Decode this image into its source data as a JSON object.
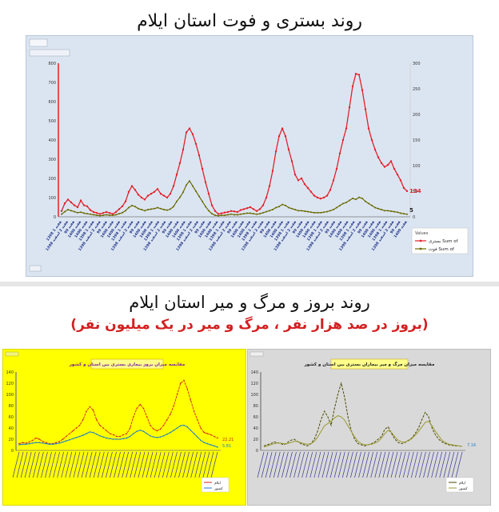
{
  "top": {
    "title": "روند بستری و فوت استان ایلام",
    "legend": {
      "header": "Values",
      "items": [
        {
          "label": "بستری Sum of",
          "color": "#e3212b"
        },
        {
          "label": "فوت Sum of",
          "color": "#6a6a00"
        }
      ]
    },
    "end_labels": {
      "hosp": "134",
      "death": "5"
    },
    "chart_data": {
      "type": "line",
      "ylim": [
        0,
        800
      ],
      "yticks": [
        0,
        100,
        200,
        300,
        400,
        500,
        600,
        700,
        800
      ],
      "y2lim": [
        0,
        300
      ],
      "y2ticks": [
        0,
        50,
        100,
        150,
        200,
        250,
        300
      ],
      "x_label_samples": [
        "1398 هفته 1",
        "هفته 2 اسفند 1398",
        "99 هفته",
        "1400 هفته",
        "1400 هفته"
      ],
      "series": [
        {
          "name": "بستری Sum of",
          "values": [
            30,
            70,
            90,
            75,
            60,
            50,
            85,
            60,
            55,
            35,
            25,
            20,
            15,
            20,
            25,
            20,
            15,
            25,
            40,
            55,
            80,
            130,
            160,
            140,
            115,
            100,
            90,
            110,
            120,
            130,
            145,
            120,
            110,
            100,
            120,
            160,
            220,
            280,
            350,
            440,
            460,
            430,
            380,
            320,
            250,
            180,
            120,
            60,
            30,
            15,
            18,
            22,
            25,
            30,
            28,
            25,
            35,
            40,
            45,
            50,
            40,
            30,
            40,
            60,
            100,
            160,
            240,
            340,
            420,
            460,
            420,
            350,
            290,
            220,
            190,
            200,
            170,
            150,
            130,
            110,
            100,
            95,
            100,
            110,
            140,
            190,
            250,
            330,
            400,
            460,
            570,
            680,
            745,
            740,
            660,
            560,
            460,
            400,
            350,
            310,
            280,
            260,
            270,
            290,
            250,
            220,
            190,
            150,
            134
          ]
        },
        {
          "name": "فوت Sum of",
          "values": [
            5,
            10,
            14,
            12,
            10,
            8,
            9,
            7,
            6,
            5,
            4,
            3,
            2,
            3,
            4,
            3,
            3,
            4,
            6,
            8,
            12,
            18,
            22,
            20,
            16,
            14,
            12,
            14,
            15,
            16,
            18,
            16,
            14,
            13,
            15,
            20,
            30,
            38,
            48,
            62,
            70,
            60,
            50,
            40,
            30,
            20,
            12,
            6,
            3,
            2,
            3,
            3,
            4,
            5,
            4,
            4,
            5,
            6,
            7,
            7,
            6,
            5,
            6,
            8,
            10,
            12,
            14,
            18,
            20,
            24,
            22,
            18,
            16,
            14,
            12,
            12,
            11,
            10,
            9,
            8,
            8,
            8,
            9,
            10,
            12,
            14,
            18,
            22,
            26,
            28,
            32,
            36,
            34,
            38,
            36,
            30,
            26,
            22,
            18,
            16,
            14,
            12,
            12,
            11,
            10,
            9,
            7,
            6,
            5
          ]
        }
      ]
    }
  },
  "bottom": {
    "title": "روند بروز و مرگ و میر استان ایلام",
    "subtitle": "(بروز در صد هزار نفر ، مرگ و میر در یک میلیون نفر)",
    "left_chart": {
      "title": "مقایسه میزان بروز بیماری بستری بین استان و کشور",
      "end_labels": [
        "22.21",
        "5.81"
      ],
      "legend": [
        {
          "label": "ایلام",
          "color": "#d42020"
        },
        {
          "label": "کشور",
          "color": "#1f7ec8"
        }
      ],
      "chart_data": {
        "type": "line",
        "ylim": [
          0,
          140
        ],
        "yticks": [
          0,
          20,
          40,
          60,
          80,
          100,
          120,
          140
        ],
        "series": [
          {
            "name": "ایلام",
            "values": [
              12,
              14,
              13,
              15,
              18,
              22,
              20,
              16,
              14,
              12,
              12,
              14,
              16,
              20,
              25,
              30,
              35,
              40,
              45,
              55,
              70,
              78,
              72,
              55,
              45,
              40,
              35,
              30,
              28,
              25,
              25,
              28,
              30,
              40,
              60,
              75,
              82,
              75,
              60,
              45,
              38,
              35,
              38,
              45,
              55,
              65,
              80,
              100,
              120,
              125,
              110,
              90,
              70,
              55,
              40,
              32,
              30,
              28,
              25,
              22.21
            ]
          },
          {
            "name": "کشور",
            "values": [
              10,
              11,
              11,
              12,
              13,
              14,
              14,
              13,
              12,
              11,
              11,
              12,
              13,
              15,
              17,
              19,
              21,
              23,
              25,
              27,
              30,
              33,
              32,
              29,
              26,
              24,
              22,
              21,
              20,
              20,
              20,
              21,
              22,
              25,
              30,
              34,
              36,
              34,
              30,
              26,
              24,
              23,
              24,
              26,
              29,
              32,
              36,
              40,
              44,
              45,
              42,
              36,
              30,
              24,
              18,
              14,
              12,
              10,
              8,
              5.81
            ]
          }
        ]
      }
    },
    "right_chart": {
      "title": "مقایسه میزان مرگ و میر بیماران بستری بین استان و کشور",
      "end_label": "7.16",
      "legend": [
        {
          "label": "ایلام",
          "color": "#4a4a00"
        },
        {
          "label": "کشور",
          "color": "#9a9a30"
        }
      ],
      "chart_data": {
        "type": "line",
        "ylim": [
          0,
          140
        ],
        "yticks": [
          0,
          20,
          40,
          60,
          80,
          100,
          120,
          140
        ],
        "series": [
          {
            "name": "ایلام",
            "values": [
              8,
              10,
              12,
              15,
              14,
              12,
              10,
              14,
              18,
              20,
              16,
              12,
              10,
              8,
              12,
              20,
              35,
              55,
              70,
              60,
              45,
              75,
              100,
              120,
              95,
              60,
              35,
              20,
              12,
              10,
              8,
              10,
              12,
              15,
              20,
              25,
              38,
              42,
              30,
              20,
              14,
              12,
              14,
              18,
              22,
              30,
              40,
              55,
              68,
              60,
              40,
              28,
              20,
              15,
              12,
              10,
              9,
              8,
              8,
              7.16
            ]
          },
          {
            "name": "کشور",
            "values": [
              6,
              8,
              10,
              12,
              13,
              13,
              12,
              12,
              14,
              16,
              16,
              14,
              12,
              11,
              12,
              16,
              24,
              34,
              44,
              48,
              52,
              58,
              62,
              60,
              54,
              44,
              34,
              24,
              16,
              12,
              10,
              10,
              11,
              13,
              16,
              22,
              30,
              36,
              32,
              24,
              18,
              15,
              15,
              17,
              21,
              27,
              34,
              42,
              50,
              52,
              44,
              34,
              26,
              18,
              14,
              11,
              10,
              9,
              8,
              7
            ]
          }
        ]
      }
    }
  }
}
